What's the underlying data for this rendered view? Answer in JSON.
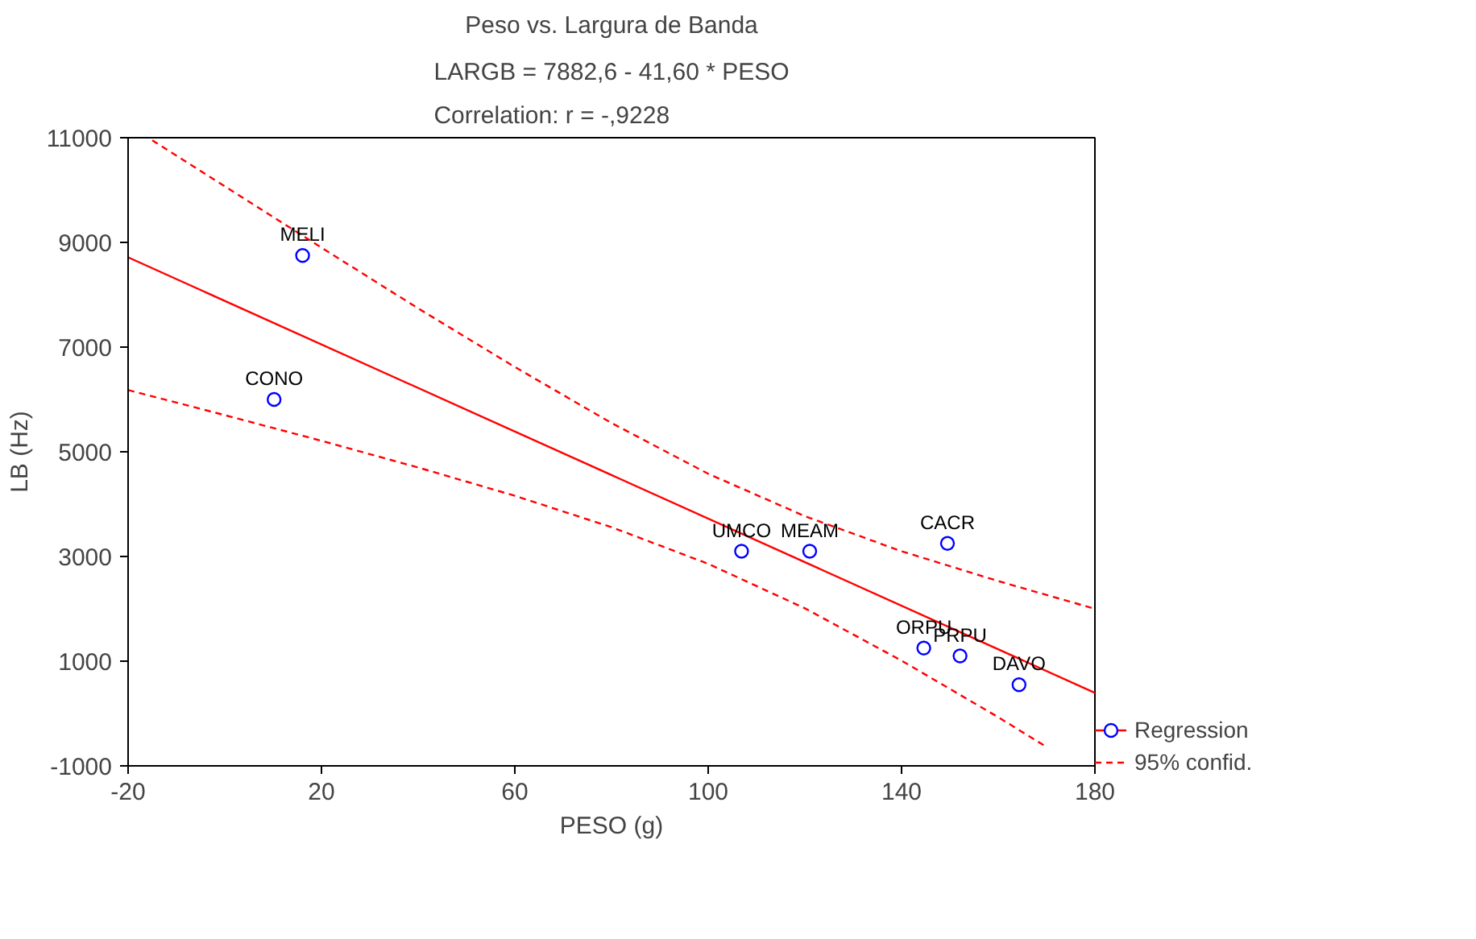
{
  "chart_data": {
    "type": "scatter",
    "title": "Peso vs. Largura de Banda",
    "subtitle": "LARGB = 7882,6 - 41,60 * PESO\nCorrelation: r = -,9228",
    "xlabel": "PESO (g)",
    "ylabel": "LB (Hz)",
    "xlim": [
      -20,
      180
    ],
    "ylim": [
      -1000,
      11000
    ],
    "xticks": [
      -20,
      20,
      60,
      100,
      140,
      180
    ],
    "yticks": [
      -1000,
      1000,
      3000,
      5000,
      7000,
      9000,
      11000
    ],
    "grid": false,
    "legend": "bottom right",
    "series": [
      {
        "marker": "circle",
        "color": "#0000ff",
        "x": [
          16.1,
          10.2,
          106.9,
          121,
          149.5,
          144.6,
          152.1,
          164.3
        ],
        "values": [
          8750,
          6000,
          3100,
          3100,
          3250,
          1250,
          1100,
          550
        ]
      },
      {
        "type": "line",
        "name": "Regression",
        "color": "#ff0000",
        "line_style": "solid",
        "x": [
          -20,
          180
        ],
        "values": [
          8715,
          395
        ]
      },
      {
        "type": "line",
        "name": "95% confid.",
        "color": "#ff0000",
        "line_style": "dashed",
        "x": [
          -15,
          0,
          20,
          40,
          60,
          80,
          100,
          120,
          140,
          160,
          180
        ],
        "values": [
          10950,
          10070,
          8900,
          7740,
          6620,
          5550,
          4580,
          3770,
          3100,
          2530,
          2000
        ]
      },
      {
        "type": "line",
        "color": "#ff0000",
        "line_style": "dashed",
        "x": [
          -20,
          0,
          20,
          40,
          60,
          80,
          100,
          120,
          140,
          160,
          170
        ],
        "values": [
          6180,
          5700,
          5210,
          4700,
          4160,
          3560,
          2860,
          2010,
          1010,
          -70,
          -640
        ]
      }
    ],
    "annotations": [
      {
        "text": "MELI",
        "x": 16.1,
        "y": 8750
      },
      {
        "text": "CONO",
        "x": 10.2,
        "y": 6000
      },
      {
        "text": "UMCO",
        "x": 106.9,
        "y": 3100
      },
      {
        "text": "MEAM",
        "x": 121,
        "y": 3100
      },
      {
        "text": "CACR",
        "x": 149.5,
        "y": 3250
      },
      {
        "text": "ORPU",
        "x": 144.6,
        "y": 1250
      },
      {
        "text": "PRPU",
        "x": 152.1,
        "y": 1100
      },
      {
        "text": "DAVO",
        "x": 164.3,
        "y": 550
      }
    ]
  }
}
